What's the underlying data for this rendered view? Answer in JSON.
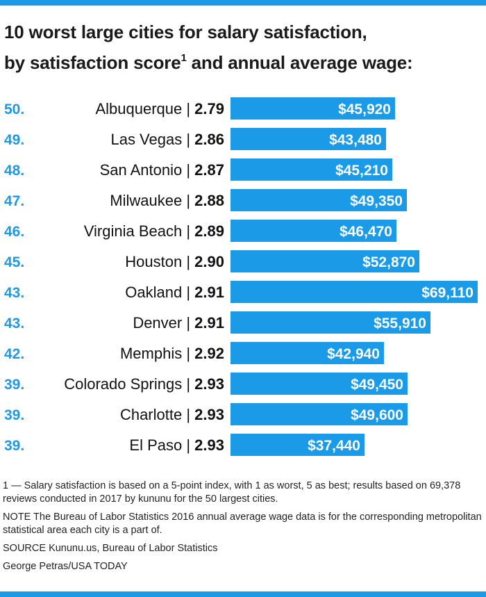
{
  "title": {
    "line1": "10 worst large cities for salary satisfaction,",
    "line2a": "by satisfaction score",
    "sup": "1",
    "line2b": " and annual average wage:"
  },
  "colors": {
    "accent": "#1b9ae8",
    "bar": "#1b9ae8",
    "rank": "#1b9ae8",
    "text": "#111111",
    "bar_label": "#ffffff"
  },
  "chart_data": {
    "type": "bar",
    "orientation": "horizontal",
    "xlim": [
      0,
      69110
    ],
    "rows": [
      {
        "rank": "50.",
        "city": "Albuquerque",
        "score": "2.79",
        "wage": 45920,
        "wage_label": "$45,920"
      },
      {
        "rank": "49.",
        "city": "Las Vegas",
        "score": "2.86",
        "wage": 43480,
        "wage_label": "$43,480"
      },
      {
        "rank": "48.",
        "city": "San Antonio",
        "score": "2.87",
        "wage": 45210,
        "wage_label": "$45,210"
      },
      {
        "rank": "47.",
        "city": "Milwaukee",
        "score": "2.88",
        "wage": 49350,
        "wage_label": "$49,350"
      },
      {
        "rank": "46.",
        "city": "Virginia Beach",
        "score": "2.89",
        "wage": 46470,
        "wage_label": "$46,470"
      },
      {
        "rank": "45.",
        "city": "Houston",
        "score": "2.90",
        "wage": 52870,
        "wage_label": "$52,870"
      },
      {
        "rank": "43.",
        "city": "Oakland",
        "score": "2.91",
        "wage": 69110,
        "wage_label": "$69,110"
      },
      {
        "rank": "43.",
        "city": "Denver",
        "score": "2.91",
        "wage": 55910,
        "wage_label": "$55,910"
      },
      {
        "rank": "42.",
        "city": "Memphis",
        "score": "2.92",
        "wage": 42940,
        "wage_label": "$42,940"
      },
      {
        "rank": "39.",
        "city": "Colorado Springs",
        "score": "2.93",
        "wage": 49450,
        "wage_label": "$49,450"
      },
      {
        "rank": "39.",
        "city": "Charlotte",
        "score": "2.93",
        "wage": 49600,
        "wage_label": "$49,600"
      },
      {
        "rank": "39.",
        "city": "El Paso",
        "score": "2.93",
        "wage": 37440,
        "wage_label": "$37,440"
      }
    ]
  },
  "notes": {
    "footnote": "1 — Salary satisfaction is based on a 5-point index, with 1 as worst, 5 as best; results based on 69,378 reviews conducted in 2017 by kununu for the 50 largest cities.",
    "note": "NOTE The Bureau of Labor Statistics 2016 annual average wage data is for the corresponding metropolitan statistical area each city is a part of.",
    "source": "SOURCE Kununu.us, Bureau of Labor Statistics",
    "credit": "George Petras/USA TODAY"
  }
}
